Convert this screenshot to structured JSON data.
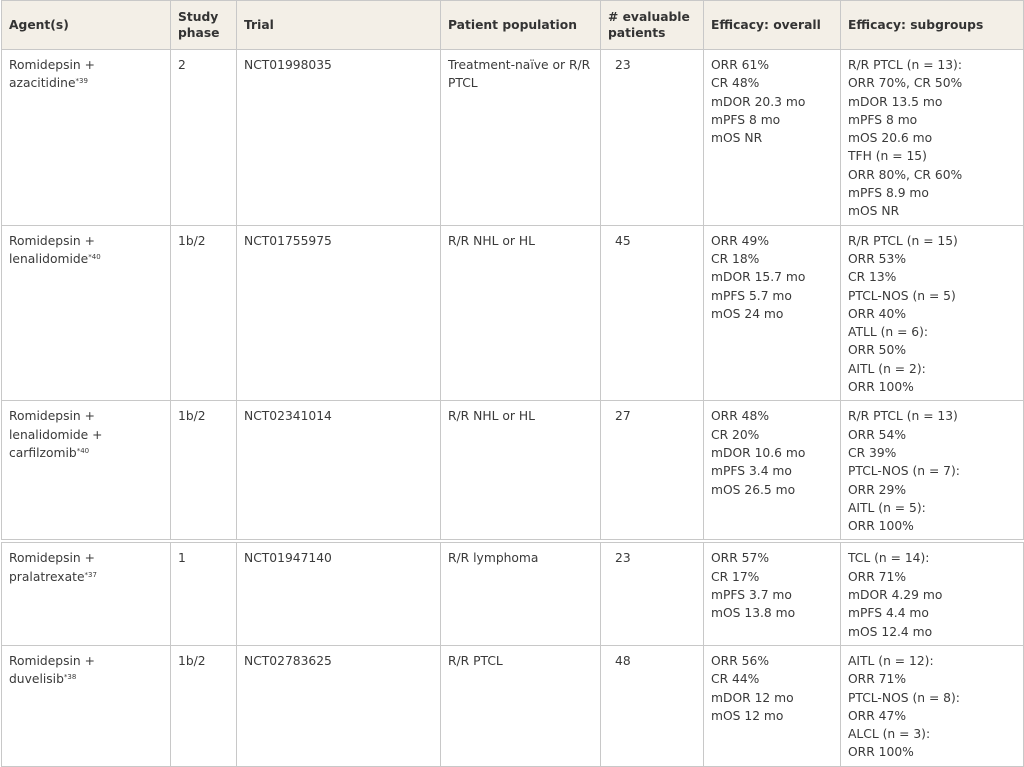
{
  "headers": [
    "Agent(s)",
    "Study phase",
    "Trial",
    "Patient population",
    "# evaluable patients",
    "Efficacy: overall",
    "Efficacy: subgroups"
  ],
  "rows": [
    {
      "agents": [
        "Romidepsin +",
        "azacitidine"
      ],
      "ref": "*39",
      "phase": "2",
      "trial": "NCT01998035",
      "population": "Treatment-naïve or R/R PTCL",
      "patients": "23",
      "overall": [
        "ORR 61%",
        "CR 48%",
        "mDOR 20.3 mo",
        "mPFS 8 mo",
        "mOS NR"
      ],
      "subgroups": [
        "R/R PTCL (n = 13):",
        "ORR 70%, CR 50%",
        "mDOR 13.5 mo",
        "mPFS 8 mo",
        "mOS 20.6 mo",
        "TFH (n = 15)",
        "ORR 80%, CR 60%",
        "mPFS 8.9 mo",
        "mOS NR"
      ]
    },
    {
      "agents": [
        "Romidepsin +",
        "lenalidomide"
      ],
      "ref": "*40",
      "phase": "1b/2",
      "trial": "NCT01755975",
      "population": "R/R NHL or HL",
      "patients": "45",
      "overall": [
        "ORR 49%",
        "CR 18%",
        "mDOR 15.7 mo",
        "mPFS 5.7 mo",
        "mOS 24 mo"
      ],
      "subgroups": [
        "R/R PTCL (n = 15)",
        "ORR 53%",
        "CR 13%",
        "PTCL-NOS (n = 5)",
        "ORR 40%",
        "ATLL (n = 6):",
        "ORR 50%",
        "AITL (n = 2):",
        "ORR 100%"
      ]
    },
    {
      "agents": [
        "Romidepsin +",
        "lenalidomide +",
        "carfilzomib"
      ],
      "ref": "*40",
      "phase": "1b/2",
      "trial": "NCT02341014",
      "population": "R/R NHL or HL",
      "patients": "27",
      "overall": [
        "ORR 48%",
        "CR 20%",
        "mDOR 10.6 mo",
        "mPFS 3.4 mo",
        "mOS 26.5 mo"
      ],
      "subgroups": [
        "R/R PTCL (n = 13)",
        "ORR 54%",
        "CR 39%",
        "PTCL-NOS (n = 7):",
        "ORR 29%",
        "AITL (n = 5):",
        "ORR 100%"
      ]
    },
    {
      "agents": [
        "Romidepsin +",
        "pralatrexate"
      ],
      "ref": "*37",
      "phase": "1",
      "trial": "NCT01947140",
      "population": "R/R lymphoma",
      "patients": "23",
      "overall": [
        "ORR 57%",
        "CR 17%",
        "mPFS 3.7 mo",
        "mOS 13.8 mo"
      ],
      "subgroups": [
        "TCL (n = 14):",
        "ORR 71%",
        "mDOR 4.29 mo",
        "mPFS 4.4 mo",
        "mOS 12.4 mo"
      ]
    },
    {
      "agents": [
        "Romidepsin +",
        "duvelisib"
      ],
      "ref": "*38",
      "phase": "1b/2",
      "trial": "NCT02783625",
      "population": "R/R PTCL",
      "patients": "48",
      "overall": [
        "ORR 56%",
        "CR 44%",
        "mDOR 12 mo",
        "mOS 12 mo"
      ],
      "subgroups": [
        "AITL (n = 12):",
        "ORR 71%",
        "PTCL-NOS (n = 8):",
        "ORR 47%",
        "ALCL (n = 3):",
        "ORR 100%"
      ]
    }
  ]
}
